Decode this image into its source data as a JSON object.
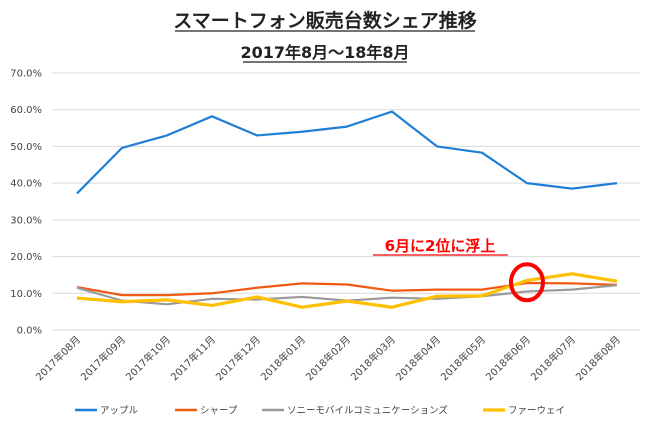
{
  "chart_data": {
    "type": "line",
    "title": "スマートフォン販売台数シェア推移",
    "subtitle": "2017年8月～18年8月",
    "xlabel": "",
    "ylabel": "",
    "ylim": [
      0,
      70
    ],
    "yticks": [
      "0.0%",
      "10.0%",
      "20.0%",
      "30.0%",
      "40.0%",
      "50.0%",
      "60.0%",
      "70.0%"
    ],
    "grid": true,
    "legend_position": "bottom",
    "categories": [
      "2017年08月",
      "2017年09月",
      "2017年10月",
      "2017年11月",
      "2017年12月",
      "2018年01月",
      "2018年02月",
      "2018年03月",
      "2018年04月",
      "2018年05月",
      "2018年06月",
      "2018年07月",
      "2018年08月"
    ],
    "series": [
      {
        "name": "アップル",
        "color": "#1f7fd6",
        "values": [
          37.2,
          49.6,
          53.0,
          58.2,
          53.0,
          54.0,
          55.4,
          59.5,
          50.0,
          48.3,
          40.0,
          38.5,
          40.0
        ]
      },
      {
        "name": "シャープ",
        "color": "#f05a14",
        "values": [
          11.7,
          9.5,
          9.5,
          10.0,
          11.5,
          12.7,
          12.4,
          10.7,
          11.0,
          11.0,
          12.8,
          12.7,
          12.3
        ]
      },
      {
        "name": "ソニーモバイルコミュニケーションズ",
        "color": "#9a9a9a",
        "values": [
          11.5,
          8.0,
          7.0,
          8.5,
          8.3,
          9.0,
          8.0,
          8.8,
          8.5,
          9.2,
          10.5,
          11.0,
          12.2
        ]
      },
      {
        "name": "ファーウェイ",
        "color": "#ffc000",
        "values": [
          8.7,
          7.7,
          8.2,
          6.7,
          9.0,
          6.2,
          7.9,
          6.2,
          9.2,
          9.3,
          13.5,
          15.3,
          13.3
        ]
      }
    ],
    "annotation": {
      "text": "6月に2位に浮上",
      "color": "#ff0000",
      "target_category": "2018年06月",
      "target_value": 13
    }
  }
}
